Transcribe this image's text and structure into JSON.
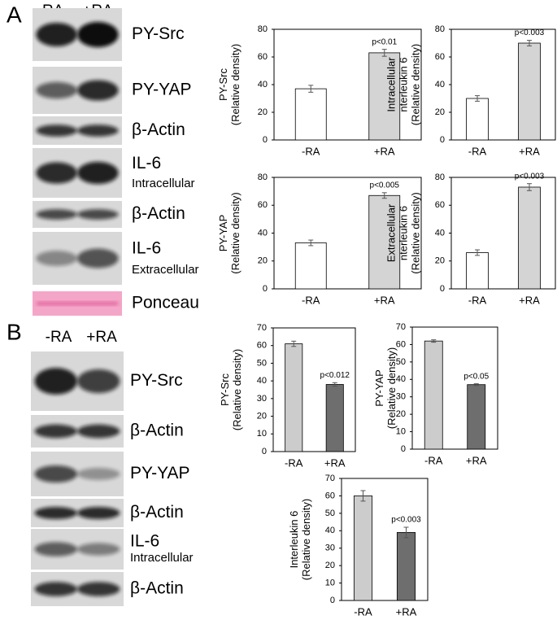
{
  "panels": [
    {
      "letter": "A",
      "columns": [
        "-RA",
        "+RA"
      ],
      "rows": [
        {
          "label": "PY-Src"
        },
        {
          "label": "PY-YAP"
        },
        {
          "label": "β-Actin"
        },
        {
          "label": "IL-6",
          "sublabel": "Intracellular"
        },
        {
          "label": "β-Actin"
        },
        {
          "label": "IL-6",
          "sublabel": "Extracellular"
        },
        {
          "label": "Ponceau"
        }
      ]
    },
    {
      "letter": "B",
      "columns": [
        "-RA",
        "+RA"
      ],
      "rows": [
        {
          "label": "PY-Src"
        },
        {
          "label": "β-Actin"
        },
        {
          "label": "PY-YAP"
        },
        {
          "label": "β-Actin"
        },
        {
          "label": "IL-6",
          "sublabel": "Intracellular"
        },
        {
          "label": "β-Actin"
        }
      ]
    }
  ],
  "chart_data": [
    {
      "type": "bar",
      "ylabel": [
        "PY-Src",
        "(Relative density)"
      ],
      "categories": [
        "-RA",
        "+RA"
      ],
      "values": [
        37,
        63
      ],
      "errors": [
        2.5,
        2.5
      ],
      "colors": [
        "#ffffff",
        "#d4d4d4"
      ],
      "annotation": "p<0.01",
      "ylim": [
        0,
        80
      ],
      "yticks": [
        0,
        20,
        40,
        60,
        80
      ]
    },
    {
      "type": "bar",
      "ylabel": [
        "Intracellular",
        "nterleukin 6",
        "(Relative density)"
      ],
      "categories": [
        "-RA",
        "+RA"
      ],
      "values": [
        30,
        70
      ],
      "errors": [
        2,
        2
      ],
      "colors": [
        "#ffffff",
        "#d4d4d4"
      ],
      "annotation": "p<0.003",
      "ylim": [
        0,
        80
      ],
      "yticks": [
        0,
        20,
        40,
        60,
        80
      ]
    },
    {
      "type": "bar",
      "ylabel": [
        "PY-YAP",
        "(Relative density)"
      ],
      "categories": [
        "-RA",
        "+RA"
      ],
      "values": [
        33,
        67
      ],
      "errors": [
        2,
        2
      ],
      "colors": [
        "#ffffff",
        "#d4d4d4"
      ],
      "annotation": "p<0.005",
      "ylim": [
        0,
        80
      ],
      "yticks": [
        0,
        20,
        40,
        60,
        80
      ]
    },
    {
      "type": "bar",
      "ylabel": [
        "Extracellular",
        "nterleukin 6",
        "(Relative density)"
      ],
      "categories": [
        "-RA",
        "+RA"
      ],
      "values": [
        26,
        73
      ],
      "errors": [
        2,
        2.5
      ],
      "colors": [
        "#ffffff",
        "#d4d4d4"
      ],
      "annotation": "p<0.003",
      "ylim": [
        0,
        80
      ],
      "yticks": [
        0,
        20,
        40,
        60,
        80
      ]
    },
    {
      "type": "bar",
      "ylabel": [
        "PY-Src",
        "(Relative density)"
      ],
      "categories": [
        "-RA",
        "+RA"
      ],
      "values": [
        61,
        38
      ],
      "errors": [
        1.5,
        1
      ],
      "colors": [
        "#cccccc",
        "#6e6e6e"
      ],
      "annotation": "p<0.012",
      "ylim": [
        0,
        70
      ],
      "yticks": [
        0,
        10,
        20,
        30,
        40,
        50,
        60,
        70
      ]
    },
    {
      "type": "bar",
      "ylabel": [
        "PY-YAP",
        "(Relative density)"
      ],
      "categories": [
        "-RA",
        "+RA"
      ],
      "values": [
        62,
        37
      ],
      "errors": [
        0.7,
        0.5
      ],
      "colors": [
        "#cccccc",
        "#6e6e6e"
      ],
      "annotation": "p<0.05",
      "ylim": [
        0,
        70
      ],
      "yticks": [
        0,
        10,
        20,
        30,
        40,
        50,
        60,
        70
      ]
    },
    {
      "type": "bar",
      "ylabel": [
        "Interleukin 6",
        "(Relative density)"
      ],
      "categories": [
        "-RA",
        "+RA"
      ],
      "values": [
        60,
        39
      ],
      "errors": [
        3,
        3
      ],
      "colors": [
        "#cccccc",
        "#6e6e6e"
      ],
      "annotation": "p<0.003",
      "ylim": [
        0,
        70
      ],
      "yticks": [
        0,
        10,
        20,
        30,
        40,
        50,
        60,
        70
      ]
    }
  ]
}
